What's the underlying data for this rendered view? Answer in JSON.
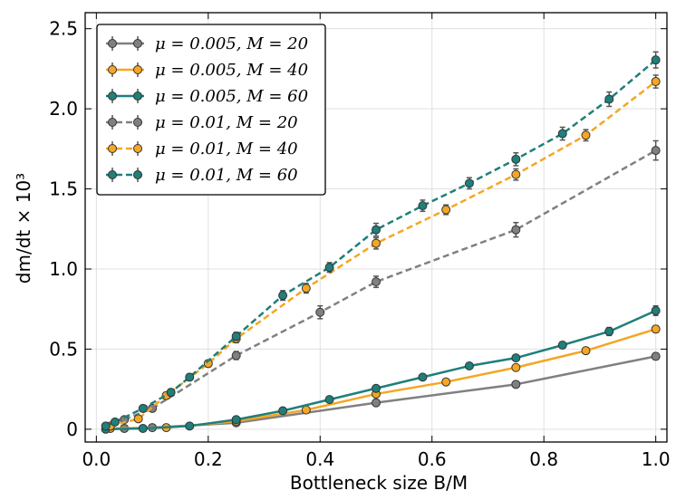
{
  "chart_data": {
    "type": "line",
    "xlabel": "Bottleneck size B/M",
    "ylabel": "dm/dt × 10³",
    "xlim": [
      -0.02,
      1.02
    ],
    "ylim": [
      -0.08,
      2.6
    ],
    "xticks": [
      0.0,
      0.2,
      0.4,
      0.6,
      0.8,
      1.0
    ],
    "xtick_labels": [
      "0.0",
      "0.2",
      "0.4",
      "0.6",
      "0.8",
      "1.0"
    ],
    "yticks": [
      0,
      0.5,
      1.0,
      1.5,
      2.0,
      2.5
    ],
    "ytick_labels": [
      "0",
      "0.5",
      "1.0",
      "1.5",
      "2.0",
      "2.5"
    ],
    "grid": true,
    "legend_position": "top-left",
    "series": [
      {
        "name": "μ = 0.005, M = 20",
        "color": "#808080",
        "dash": "solid",
        "x": [
          0.05,
          0.1,
          0.25,
          0.5,
          0.75,
          1.0
        ],
        "y": [
          0.005,
          0.01,
          0.04,
          0.165,
          0.28,
          0.455
        ],
        "err": [
          0.01,
          0.01,
          0.01,
          0.015,
          0.015,
          0.02
        ]
      },
      {
        "name": "μ = 0.005, M = 40",
        "color": "#f5a623",
        "dash": "solid",
        "x": [
          0.025,
          0.125,
          0.25,
          0.375,
          0.5,
          0.625,
          0.75,
          0.875,
          1.0
        ],
        "y": [
          0.005,
          0.01,
          0.05,
          0.12,
          0.22,
          0.295,
          0.385,
          0.49,
          0.625
        ],
        "err": [
          0.01,
          0.01,
          0.01,
          0.012,
          0.015,
          0.015,
          0.015,
          0.018,
          0.02
        ]
      },
      {
        "name": "μ = 0.005, M = 60",
        "color": "#1f7f7a",
        "dash": "solid",
        "x": [
          0.0167,
          0.0833,
          0.1667,
          0.25,
          0.3333,
          0.4167,
          0.5,
          0.5833,
          0.6667,
          0.75,
          0.8333,
          0.9167,
          1.0
        ],
        "y": [
          0.0,
          0.005,
          0.02,
          0.06,
          0.115,
          0.185,
          0.255,
          0.325,
          0.395,
          0.445,
          0.525,
          0.61,
          0.74
        ],
        "err": [
          0.01,
          0.01,
          0.01,
          0.01,
          0.012,
          0.012,
          0.015,
          0.015,
          0.015,
          0.015,
          0.02,
          0.025,
          0.03
        ]
      },
      {
        "name": "μ = 0.01, M = 20",
        "color": "#808080",
        "dash": "dashed",
        "x": [
          0.05,
          0.1,
          0.25,
          0.4,
          0.5,
          0.75,
          1.0
        ],
        "y": [
          0.06,
          0.13,
          0.46,
          0.73,
          0.92,
          1.245,
          1.74
        ],
        "err": [
          0.015,
          0.02,
          0.025,
          0.04,
          0.035,
          0.045,
          0.06
        ]
      },
      {
        "name": "μ = 0.01, M = 40",
        "color": "#f5a623",
        "dash": "dashed",
        "x": [
          0.025,
          0.075,
          0.125,
          0.2,
          0.25,
          0.375,
          0.5,
          0.625,
          0.75,
          0.875,
          1.0
        ],
        "y": [
          0.02,
          0.065,
          0.21,
          0.41,
          0.565,
          0.88,
          1.16,
          1.37,
          1.59,
          1.835,
          2.17
        ],
        "err": [
          0.01,
          0.012,
          0.02,
          0.02,
          0.025,
          0.03,
          0.035,
          0.03,
          0.035,
          0.035,
          0.04
        ]
      },
      {
        "name": "μ = 0.01, M = 60",
        "color": "#1f7f7a",
        "dash": "dashed",
        "x": [
          0.0167,
          0.0333,
          0.0833,
          0.1333,
          0.1667,
          0.25,
          0.3333,
          0.4167,
          0.5,
          0.5833,
          0.6667,
          0.75,
          0.8333,
          0.9167,
          1.0
        ],
        "y": [
          0.02,
          0.045,
          0.13,
          0.23,
          0.325,
          0.58,
          0.835,
          1.01,
          1.245,
          1.395,
          1.535,
          1.685,
          1.845,
          2.06,
          2.305
        ],
        "err": [
          0.01,
          0.015,
          0.02,
          0.02,
          0.02,
          0.025,
          0.03,
          0.03,
          0.04,
          0.035,
          0.035,
          0.04,
          0.04,
          0.045,
          0.05
        ]
      }
    ]
  }
}
